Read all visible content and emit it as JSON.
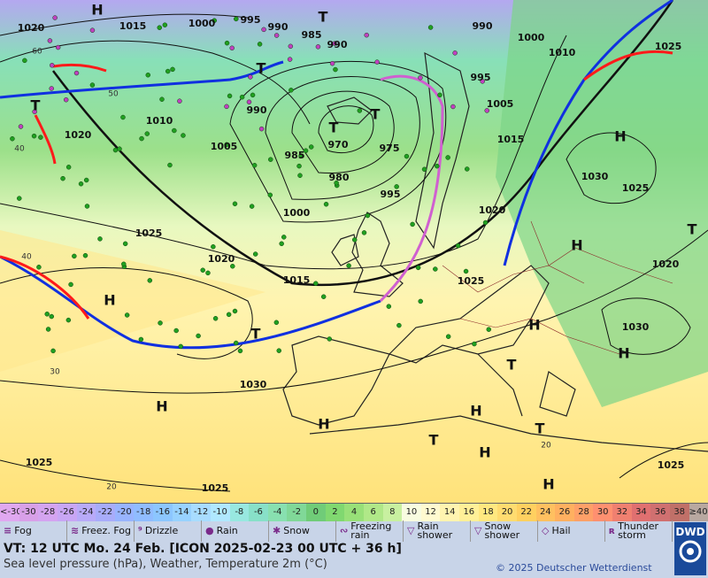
{
  "map": {
    "pressure_centers": [
      "H",
      "T",
      "H",
      "H",
      "H",
      "H",
      "H",
      "H",
      "H",
      "H",
      "H",
      "H",
      "T",
      "T",
      "T",
      "T",
      "T",
      "T",
      "T",
      "T",
      "T"
    ],
    "isobar_labels": [
      "1020",
      "1015",
      "1000",
      "995",
      "990",
      "985",
      "990",
      "990",
      "1000",
      "1010",
      "1025",
      "995",
      "1005",
      "1015",
      "1010",
      "1020",
      "1005",
      "990",
      "985",
      "970",
      "975",
      "980",
      "995",
      "1000",
      "1025",
      "1020",
      "1015",
      "1025",
      "1020",
      "1030",
      "1025",
      "1020",
      "1030",
      "1030",
      "1025",
      "1025",
      "1025"
    ],
    "temperature_labels": [
      "60",
      "50",
      "40",
      "40",
      "30",
      "20",
      "20"
    ]
  },
  "temperature_scale": [
    {
      "label": "<-30",
      "color": "#e0a8f0"
    },
    {
      "label": "-30",
      "color": "#d8a0e8"
    },
    {
      "label": "-28",
      "color": "#d4a4f0"
    },
    {
      "label": "-26",
      "color": "#c8a6f4"
    },
    {
      "label": "-24",
      "color": "#b8aaf8"
    },
    {
      "label": "-22",
      "color": "#a8acfa"
    },
    {
      "label": "-20",
      "color": "#98b4ff"
    },
    {
      "label": "-18",
      "color": "#90bcff"
    },
    {
      "label": "-16",
      "color": "#8cc6ff"
    },
    {
      "label": "-14",
      "color": "#98d2ff"
    },
    {
      "label": "-12",
      "color": "#a8dcff"
    },
    {
      "label": "-10",
      "color": "#b0e8ff"
    },
    {
      "label": "-8",
      "color": "#98e8e0"
    },
    {
      "label": "-6",
      "color": "#88e0c8"
    },
    {
      "label": "-4",
      "color": "#88e0b0"
    },
    {
      "label": "-2",
      "color": "#80d898"
    },
    {
      "label": "0",
      "color": "#70cc78"
    },
    {
      "label": "2",
      "color": "#80d870"
    },
    {
      "label": "4",
      "color": "#98e078"
    },
    {
      "label": "6",
      "color": "#b0e888"
    },
    {
      "label": "8",
      "color": "#c8f0a0"
    },
    {
      "label": "10",
      "color": "#f8fce0"
    },
    {
      "label": "12",
      "color": "#fffad0"
    },
    {
      "label": "14",
      "color": "#fff4b0"
    },
    {
      "label": "16",
      "color": "#fff098"
    },
    {
      "label": "18",
      "color": "#ffe880"
    },
    {
      "label": "20",
      "color": "#ffdc70"
    },
    {
      "label": "22",
      "color": "#ffd060"
    },
    {
      "label": "24",
      "color": "#ffc060"
    },
    {
      "label": "26",
      "color": "#ffb060"
    },
    {
      "label": "28",
      "color": "#ffa068"
    },
    {
      "label": "30",
      "color": "#ff9070"
    },
    {
      "label": "32",
      "color": "#f08070"
    },
    {
      "label": "34",
      "color": "#e07070"
    },
    {
      "label": "36",
      "color": "#d07070"
    },
    {
      "label": "38",
      "color": "#c07068"
    },
    {
      "label": "≥40 °C",
      "color": "#b8a8a0"
    }
  ],
  "legend": [
    {
      "symbol": "≡",
      "label": "Fog"
    },
    {
      "symbol": "≋",
      "label": "Freez. Fog"
    },
    {
      "symbol": "⁹",
      "label": "Drizzle"
    },
    {
      "symbol": "●",
      "label": "Rain"
    },
    {
      "symbol": "✱",
      "label": "Snow"
    },
    {
      "symbol": "∾",
      "label": "Freezing rain"
    },
    {
      "symbol": "▽",
      "label": "Rain shower"
    },
    {
      "symbol": "▽",
      "label": "Snow shower"
    },
    {
      "symbol": "◇",
      "label": "Hail"
    },
    {
      "symbol": "ʀ",
      "label": "Thunder storm"
    }
  ],
  "footer": {
    "valid_time": "VT: 12 UTC Mo.  24 Feb. [ICON 2025-02-23  00 UTC + 36 h]",
    "description": "Sea level pressure (hPa), Weather, Temperature 2m (°C)",
    "copyright": "© 2025 Deutscher Wetterdienst",
    "logo": "DWD"
  }
}
